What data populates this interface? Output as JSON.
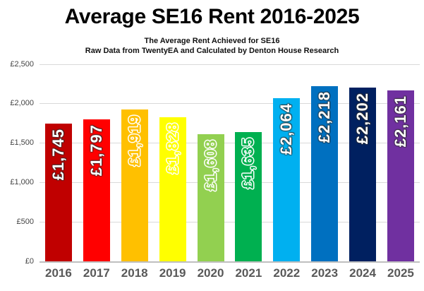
{
  "slide": {
    "title": "Average SE16 Rent 2016-2025",
    "subtitle_line1": "The Average Rent Achieved for SE16",
    "subtitle_line2": "Raw Data from TwentyEA and Calculated by Denton House Research"
  },
  "chart_data": {
    "type": "bar",
    "title": "Average SE16 Rent 2016-2025",
    "subtitle": [
      "The Average Rent Achieved for SE16",
      "Raw Data from TwentyEA and Calculated by Denton House Research"
    ],
    "categories": [
      "2016",
      "2017",
      "2018",
      "2019",
      "2020",
      "2021",
      "2022",
      "2023",
      "2024",
      "2025"
    ],
    "values": [
      1745,
      1797,
      1919,
      1828,
      1608,
      1635,
      2064,
      2218,
      2202,
      2161
    ],
    "value_labels": [
      "£1,745",
      "£1,797",
      "£1,919",
      "£1,828",
      "£1,608",
      "£1,635",
      "£2,064",
      "£2,218",
      "£2,202",
      "£2,161"
    ],
    "colors": [
      "#C00000",
      "#FF0000",
      "#FFC000",
      "#FFFF00",
      "#92D050",
      "#00B050",
      "#00B0F0",
      "#0070C0",
      "#002060",
      "#7030A0"
    ],
    "label_styles": [
      "white",
      "white",
      "tint",
      "tint",
      "tint",
      "tint",
      "white",
      "white",
      "white",
      "white"
    ],
    "xlabel": "",
    "ylabel": "",
    "ylim": [
      0,
      2500
    ],
    "y_ticks": [
      {
        "value": 0,
        "label": "£0"
      },
      {
        "value": 500,
        "label": "£500"
      },
      {
        "value": 1000,
        "label": "£1,000"
      },
      {
        "value": 1500,
        "label": "£1,500"
      },
      {
        "value": 2000,
        "label": "£2,000"
      },
      {
        "value": 2500,
        "label": "£2,500"
      }
    ],
    "grid": true,
    "gridline_color": "#D9D9D9",
    "axis_line_color": "#BFBFBF",
    "tick_label_color": "#444444",
    "category_label_color": "#595959",
    "legend": "none",
    "background": "#FFFFFF"
  }
}
